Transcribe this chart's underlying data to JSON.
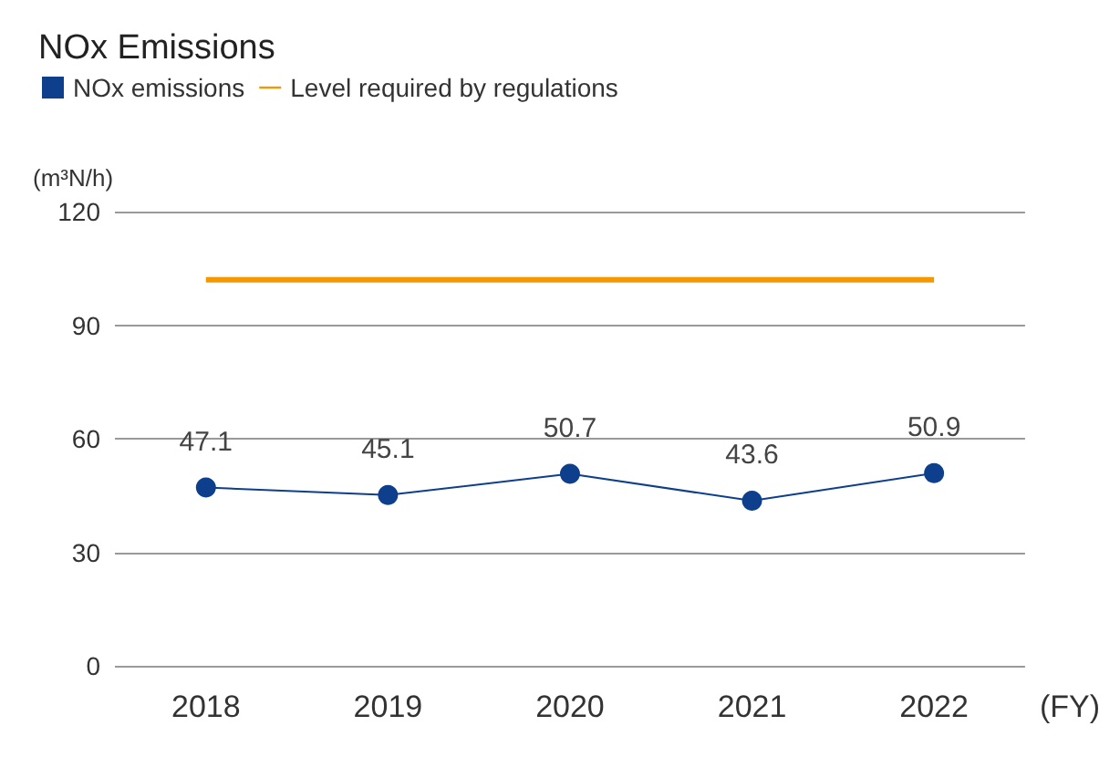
{
  "chart_data": {
    "type": "line",
    "title": "NOx Emissions",
    "ylabel": "(m³N/h)",
    "xlabel": "(FY)",
    "categories": [
      "2018",
      "2019",
      "2020",
      "2021",
      "2022"
    ],
    "series": [
      {
        "name": "NOx emissions",
        "color": "#0d3f8c",
        "values": [
          47.1,
          45.1,
          50.7,
          43.6,
          50.9
        ],
        "marker": "circle",
        "data_labels": true
      },
      {
        "name": "Level required by regulations",
        "color": "#f39800",
        "values": [
          102,
          102,
          102,
          102,
          102
        ],
        "marker": "none"
      }
    ],
    "ylim": [
      0,
      120
    ],
    "yticks": [
      0,
      30,
      60,
      90,
      120
    ],
    "grid": "y",
    "legend": "top left"
  }
}
